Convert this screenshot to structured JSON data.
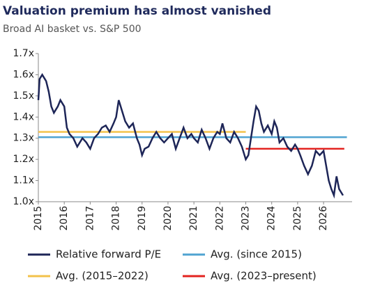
{
  "chart_data": {
    "type": "line",
    "title": "Valuation premium has almost vanished",
    "subtitle": "Broad AI basket vs. S&P 500",
    "xlim": [
      2015,
      2027.1
    ],
    "xticks": [
      2015,
      2016,
      2017,
      2018,
      2019,
      2020,
      2021,
      2022,
      2023,
      2024,
      2025,
      2026
    ],
    "ylim": [
      1.0,
      1.7
    ],
    "yticks": [
      {
        "value": 1.0,
        "label": "1.0x"
      },
      {
        "value": 1.1,
        "label": "1.1x"
      },
      {
        "value": 1.2,
        "label": "1.2x"
      },
      {
        "value": 1.3,
        "label": "1.3x"
      },
      {
        "value": 1.4,
        "label": "1.4x"
      },
      {
        "value": 1.5,
        "label": "1.5x"
      },
      {
        "value": 1.6,
        "label": "1.6x"
      },
      {
        "value": 1.7,
        "label": "1.7x"
      }
    ],
    "grid": false,
    "series": [
      {
        "name": "Relative forward P/E",
        "color": "#1d2557",
        "x": [
          2015.0,
          2015.05,
          2015.15,
          2015.3,
          2015.4,
          2015.5,
          2015.6,
          2015.75,
          2015.85,
          2016.0,
          2016.1,
          2016.2,
          2016.35,
          2016.5,
          2016.7,
          2016.85,
          2017.0,
          2017.15,
          2017.3,
          2017.45,
          2017.6,
          2017.75,
          2017.9,
          2018.0,
          2018.1,
          2018.2,
          2018.35,
          2018.5,
          2018.65,
          2018.8,
          2018.9,
          2019.0,
          2019.1,
          2019.25,
          2019.4,
          2019.55,
          2019.7,
          2019.85,
          2020.0,
          2020.15,
          2020.3,
          2020.45,
          2020.6,
          2020.75,
          2020.9,
          2021.0,
          2021.15,
          2021.3,
          2021.45,
          2021.6,
          2021.75,
          2021.9,
          2022.0,
          2022.1,
          2022.25,
          2022.4,
          2022.55,
          2022.7,
          2022.85,
          2023.0,
          2023.1,
          2023.2,
          2023.3,
          2023.4,
          2023.5,
          2023.6,
          2023.7,
          2023.85,
          2024.0,
          2024.1,
          2024.2,
          2024.3,
          2024.45,
          2024.6,
          2024.75,
          2024.9,
          2025.0,
          2025.1,
          2025.25,
          2025.4,
          2025.55,
          2025.7,
          2025.85,
          2026.0,
          2026.1,
          2026.2,
          2026.3,
          2026.4,
          2026.5,
          2026.6,
          2026.75
        ],
        "values": [
          1.48,
          1.58,
          1.6,
          1.57,
          1.52,
          1.45,
          1.42,
          1.45,
          1.48,
          1.45,
          1.35,
          1.32,
          1.3,
          1.26,
          1.3,
          1.28,
          1.25,
          1.3,
          1.32,
          1.35,
          1.36,
          1.33,
          1.37,
          1.4,
          1.48,
          1.44,
          1.38,
          1.35,
          1.37,
          1.3,
          1.27,
          1.22,
          1.25,
          1.26,
          1.3,
          1.33,
          1.3,
          1.28,
          1.3,
          1.32,
          1.25,
          1.3,
          1.35,
          1.3,
          1.32,
          1.3,
          1.28,
          1.34,
          1.3,
          1.25,
          1.3,
          1.33,
          1.32,
          1.37,
          1.3,
          1.28,
          1.33,
          1.3,
          1.26,
          1.2,
          1.22,
          1.3,
          1.38,
          1.45,
          1.43,
          1.37,
          1.33,
          1.36,
          1.32,
          1.38,
          1.35,
          1.28,
          1.3,
          1.26,
          1.24,
          1.27,
          1.25,
          1.22,
          1.17,
          1.13,
          1.17,
          1.24,
          1.22,
          1.24,
          1.17,
          1.1,
          1.06,
          1.03,
          1.12,
          1.06,
          1.03
        ]
      },
      {
        "name": "Avg. (since 2015)",
        "color": "#4fa3d1",
        "x": [
          2015.0,
          2026.9
        ],
        "values": [
          1.305,
          1.305
        ]
      },
      {
        "name": "Avg. (2015–2022)",
        "color": "#f3c24b",
        "x": [
          2015.0,
          2023.0
        ],
        "values": [
          1.33,
          1.33
        ]
      },
      {
        "name": "Avg. (2023–present)",
        "color": "#e3231f",
        "x": [
          2023.0,
          2026.8
        ],
        "values": [
          1.25,
          1.25
        ]
      }
    ]
  }
}
